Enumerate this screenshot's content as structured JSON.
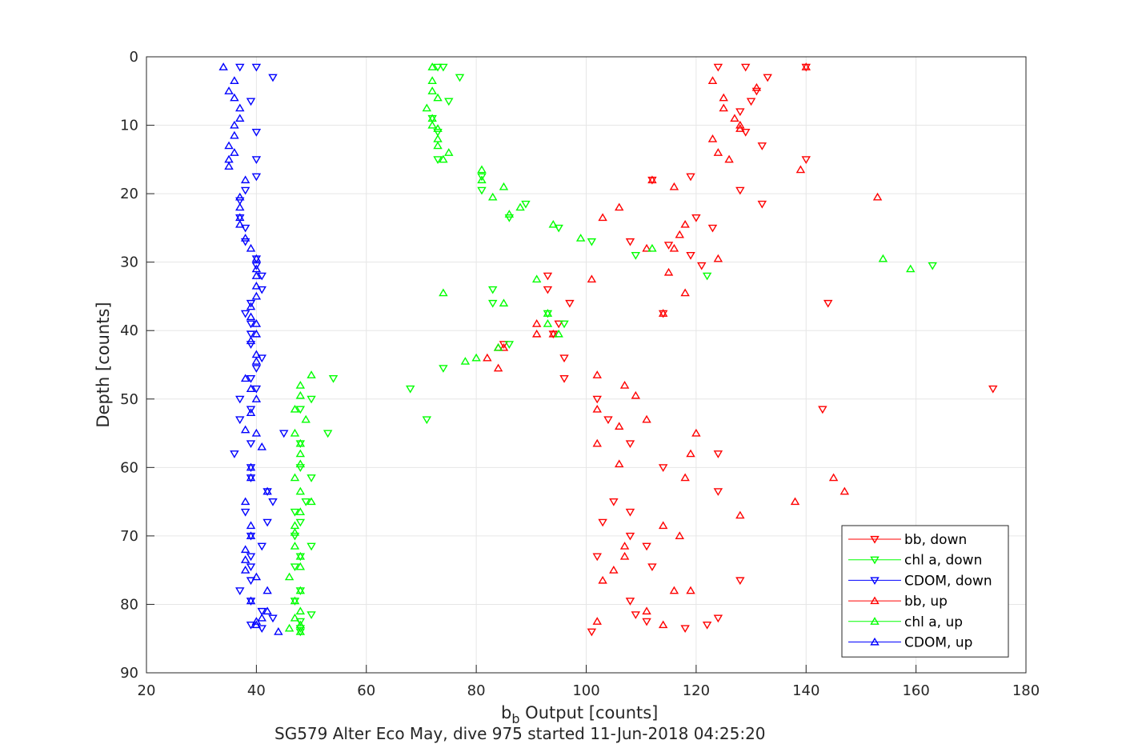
{
  "chart_data": {
    "type": "scatter",
    "xlabel_main": "b",
    "xlabel_sub": "b",
    "xlabel_rest": " Output [counts]",
    "ylabel": "Depth [counts]",
    "subtitle": "SG579 Alter Eco May, dive 975 started 11-Jun-2018 04:25:20",
    "xlim": [
      20,
      180
    ],
    "ylim": [
      0,
      90
    ],
    "y_reversed": true,
    "xticks": [
      20,
      40,
      60,
      80,
      100,
      120,
      140,
      160,
      180
    ],
    "yticks": [
      0,
      10,
      20,
      30,
      40,
      50,
      60,
      70,
      80,
      90
    ],
    "grid": true,
    "legend_position": "bottom-right",
    "series": [
      {
        "name": "bb, down",
        "color": "#ff0000",
        "marker": "triangle-down",
        "points": [
          [
            124,
            1.5
          ],
          [
            129,
            1.5
          ],
          [
            140,
            1.5
          ],
          [
            133,
            3
          ],
          [
            131,
            5
          ],
          [
            130,
            6.5
          ],
          [
            128,
            8
          ],
          [
            129,
            11
          ],
          [
            132,
            13
          ],
          [
            140,
            15
          ],
          [
            119,
            17.5
          ],
          [
            112,
            18
          ],
          [
            128,
            19.5
          ],
          [
            132,
            21.5
          ],
          [
            120,
            23.5
          ],
          [
            123,
            25
          ],
          [
            108,
            27
          ],
          [
            115,
            27.5
          ],
          [
            119,
            29
          ],
          [
            121,
            30.5
          ],
          [
            93,
            32
          ],
          [
            93,
            34
          ],
          [
            97,
            36
          ],
          [
            144,
            36
          ],
          [
            114,
            37.5
          ],
          [
            95,
            39
          ],
          [
            94,
            40.5
          ],
          [
            85,
            42
          ],
          [
            96,
            44
          ],
          [
            96,
            47
          ],
          [
            174,
            48.5
          ],
          [
            102,
            50
          ],
          [
            143,
            51.5
          ],
          [
            104,
            53
          ],
          [
            108,
            56.5
          ],
          [
            124,
            58
          ],
          [
            114,
            60
          ],
          [
            124,
            63.5
          ],
          [
            105,
            65
          ],
          [
            108,
            66.5
          ],
          [
            103,
            68
          ],
          [
            108,
            70
          ],
          [
            111,
            71.5
          ],
          [
            102,
            73
          ],
          [
            112,
            74.5
          ],
          [
            128,
            76.5
          ],
          [
            108,
            79.5
          ],
          [
            109,
            81.5
          ],
          [
            124,
            82
          ],
          [
            111,
            82.5
          ],
          [
            122,
            83
          ],
          [
            118,
            83.5
          ],
          [
            101,
            84
          ]
        ]
      },
      {
        "name": "chl a, down",
        "color": "#00ff00",
        "marker": "triangle-down",
        "points": [
          [
            73,
            1.5
          ],
          [
            74,
            1.5
          ],
          [
            77,
            3
          ],
          [
            75,
            6.5
          ],
          [
            72,
            9
          ],
          [
            73,
            11
          ],
          [
            73,
            15
          ],
          [
            81,
            17.5
          ],
          [
            81,
            19.5
          ],
          [
            89,
            21.5
          ],
          [
            86,
            23.5
          ],
          [
            95,
            25
          ],
          [
            101,
            27
          ],
          [
            109,
            29
          ],
          [
            122,
            32
          ],
          [
            83,
            34
          ],
          [
            83,
            36
          ],
          [
            93,
            37.5
          ],
          [
            96,
            39
          ],
          [
            86,
            42
          ],
          [
            74,
            45.5
          ],
          [
            68,
            48.5
          ],
          [
            50,
            50
          ],
          [
            48,
            51.5
          ],
          [
            71,
            53
          ],
          [
            53,
            55
          ],
          [
            48,
            56.5
          ],
          [
            48,
            60
          ],
          [
            50,
            61.5
          ],
          [
            49,
            65
          ],
          [
            47,
            66.5
          ],
          [
            48,
            68
          ],
          [
            47,
            70
          ],
          [
            50,
            71.5
          ],
          [
            48,
            73
          ],
          [
            47,
            74.5
          ],
          [
            48,
            78
          ],
          [
            47,
            79.5
          ],
          [
            50,
            81.5
          ],
          [
            48,
            82.5
          ],
          [
            48,
            83.5
          ],
          [
            48,
            84
          ],
          [
            54,
            47
          ],
          [
            163,
            30.5
          ]
        ]
      },
      {
        "name": "CDOM, down",
        "color": "#0000ff",
        "marker": "triangle-down",
        "points": [
          [
            37,
            1.5
          ],
          [
            40,
            1.5
          ],
          [
            43,
            3
          ],
          [
            39,
            6.5
          ],
          [
            40,
            11
          ],
          [
            40,
            15
          ],
          [
            40,
            17.5
          ],
          [
            38,
            19.5
          ],
          [
            37,
            21
          ],
          [
            37,
            23.5
          ],
          [
            38,
            25
          ],
          [
            38,
            27
          ],
          [
            40,
            29.5
          ],
          [
            40,
            30.5
          ],
          [
            41,
            32
          ],
          [
            41,
            34
          ],
          [
            39,
            36
          ],
          [
            38,
            37.5
          ],
          [
            39,
            39
          ],
          [
            39,
            40.5
          ],
          [
            39,
            42
          ],
          [
            41,
            44
          ],
          [
            40,
            45.5
          ],
          [
            39,
            47
          ],
          [
            40,
            48.5
          ],
          [
            37,
            50
          ],
          [
            39,
            51.5
          ],
          [
            37,
            53
          ],
          [
            45,
            55
          ],
          [
            39,
            56.5
          ],
          [
            36,
            58
          ],
          [
            39,
            60
          ],
          [
            39,
            61.5
          ],
          [
            42,
            63.5
          ],
          [
            43,
            65
          ],
          [
            38,
            66.5
          ],
          [
            42,
            68
          ],
          [
            39,
            70
          ],
          [
            41,
            71.5
          ],
          [
            39,
            73
          ],
          [
            39,
            74.5
          ],
          [
            39,
            76.5
          ],
          [
            37,
            78
          ],
          [
            39,
            79.5
          ],
          [
            41,
            81
          ],
          [
            43,
            82
          ],
          [
            39,
            83
          ],
          [
            41,
            83.5
          ]
        ]
      },
      {
        "name": "bb, up",
        "color": "#ff0000",
        "marker": "triangle-up",
        "points": [
          [
            140,
            1.5
          ],
          [
            123,
            3.5
          ],
          [
            131,
            4.5
          ],
          [
            125,
            6
          ],
          [
            125,
            7.5
          ],
          [
            127,
            9
          ],
          [
            128,
            10
          ],
          [
            128,
            10.5
          ],
          [
            123,
            12
          ],
          [
            124,
            14
          ],
          [
            126,
            15
          ],
          [
            139,
            16.5
          ],
          [
            112,
            18
          ],
          [
            116,
            19
          ],
          [
            153,
            20.5
          ],
          [
            106,
            22
          ],
          [
            103,
            23.5
          ],
          [
            118,
            24.5
          ],
          [
            117,
            26
          ],
          [
            111,
            28
          ],
          [
            116,
            28
          ],
          [
            124,
            29.5
          ],
          [
            115,
            31.5
          ],
          [
            101,
            32.5
          ],
          [
            118,
            34.5
          ],
          [
            114,
            37.5
          ],
          [
            91,
            39
          ],
          [
            91,
            40.5
          ],
          [
            94,
            40.5
          ],
          [
            85,
            42.5
          ],
          [
            84,
            42.5
          ],
          [
            82,
            44
          ],
          [
            84,
            45.5
          ],
          [
            102,
            46.5
          ],
          [
            107,
            48
          ],
          [
            109,
            49.5
          ],
          [
            102,
            51.5
          ],
          [
            111,
            53
          ],
          [
            106,
            54
          ],
          [
            120,
            55
          ],
          [
            102,
            56.5
          ],
          [
            119,
            58
          ],
          [
            106,
            59.5
          ],
          [
            118,
            61.5
          ],
          [
            145,
            61.5
          ],
          [
            147,
            63.5
          ],
          [
            138,
            65
          ],
          [
            128,
            67
          ],
          [
            114,
            68.5
          ],
          [
            117,
            70
          ],
          [
            107,
            71.5
          ],
          [
            107,
            73
          ],
          [
            105,
            75
          ],
          [
            103,
            76.5
          ],
          [
            116,
            78
          ],
          [
            119,
            78
          ],
          [
            111,
            81
          ],
          [
            102,
            82.5
          ],
          [
            114,
            83
          ]
        ]
      },
      {
        "name": "chl a, up",
        "color": "#00ff00",
        "marker": "triangle-up",
        "points": [
          [
            72,
            1.5
          ],
          [
            72,
            3.5
          ],
          [
            72,
            5
          ],
          [
            73,
            6
          ],
          [
            71,
            7.5
          ],
          [
            72,
            9
          ],
          [
            72,
            10
          ],
          [
            73,
            10.5
          ],
          [
            73,
            12
          ],
          [
            73,
            13
          ],
          [
            75,
            14
          ],
          [
            74,
            15
          ],
          [
            81,
            16.5
          ],
          [
            81,
            18
          ],
          [
            85,
            19
          ],
          [
            83,
            20.5
          ],
          [
            88,
            22
          ],
          [
            86,
            23
          ],
          [
            94,
            24.5
          ],
          [
            99,
            26.5
          ],
          [
            112,
            28
          ],
          [
            154,
            29.5
          ],
          [
            159,
            31
          ],
          [
            91,
            32.5
          ],
          [
            74,
            34.5
          ],
          [
            85,
            36
          ],
          [
            93,
            37.5
          ],
          [
            93,
            39
          ],
          [
            95,
            40.5
          ],
          [
            84,
            42.5
          ],
          [
            80,
            44
          ],
          [
            78,
            44.5
          ],
          [
            50,
            46.5
          ],
          [
            48,
            48
          ],
          [
            48,
            49.5
          ],
          [
            47,
            51.5
          ],
          [
            49,
            53
          ],
          [
            47,
            55
          ],
          [
            48,
            56.5
          ],
          [
            48,
            58
          ],
          [
            48,
            59.5
          ],
          [
            47,
            61.5
          ],
          [
            48,
            63.5
          ],
          [
            50,
            65
          ],
          [
            48,
            66.5
          ],
          [
            47,
            68.5
          ],
          [
            47,
            69.5
          ],
          [
            47,
            71.5
          ],
          [
            48,
            73
          ],
          [
            48,
            74.5
          ],
          [
            46,
            76
          ],
          [
            48,
            78
          ],
          [
            47,
            79.5
          ],
          [
            48,
            81
          ],
          [
            47,
            82
          ],
          [
            48,
            83
          ],
          [
            48,
            84
          ],
          [
            46,
            83.5
          ]
        ]
      },
      {
        "name": "CDOM, up",
        "color": "#0000ff",
        "marker": "triangle-up",
        "points": [
          [
            34,
            1.5
          ],
          [
            36,
            3.5
          ],
          [
            35,
            5
          ],
          [
            36,
            6
          ],
          [
            37,
            7.5
          ],
          [
            37,
            9
          ],
          [
            36,
            10
          ],
          [
            36,
            11.5
          ],
          [
            35,
            13
          ],
          [
            36,
            14
          ],
          [
            35,
            15
          ],
          [
            35,
            16
          ],
          [
            38,
            18
          ],
          [
            37,
            20.5
          ],
          [
            37,
            22
          ],
          [
            37,
            23.5
          ],
          [
            37,
            24.5
          ],
          [
            38,
            26.5
          ],
          [
            39,
            28
          ],
          [
            40,
            29.5
          ],
          [
            40,
            31
          ],
          [
            40,
            32
          ],
          [
            40,
            33.5
          ],
          [
            40,
            35
          ],
          [
            39,
            36.5
          ],
          [
            39,
            38
          ],
          [
            40,
            39
          ],
          [
            40,
            40.5
          ],
          [
            39,
            41.5
          ],
          [
            40,
            43.5
          ],
          [
            40,
            44.5
          ],
          [
            38,
            47
          ],
          [
            39,
            48.5
          ],
          [
            40,
            50
          ],
          [
            39,
            52
          ],
          [
            38,
            54.5
          ],
          [
            40,
            55
          ],
          [
            41,
            57
          ],
          [
            39,
            60
          ],
          [
            39,
            61.5
          ],
          [
            42,
            63.5
          ],
          [
            38,
            65
          ],
          [
            39,
            68.5
          ],
          [
            39,
            70
          ],
          [
            38,
            72
          ],
          [
            38,
            73.5
          ],
          [
            38,
            75
          ],
          [
            40,
            76
          ],
          [
            42,
            78
          ],
          [
            39,
            79.5
          ],
          [
            42,
            81
          ],
          [
            41,
            82
          ],
          [
            40,
            82.5
          ],
          [
            40,
            83
          ],
          [
            44,
            84
          ]
        ]
      }
    ]
  }
}
